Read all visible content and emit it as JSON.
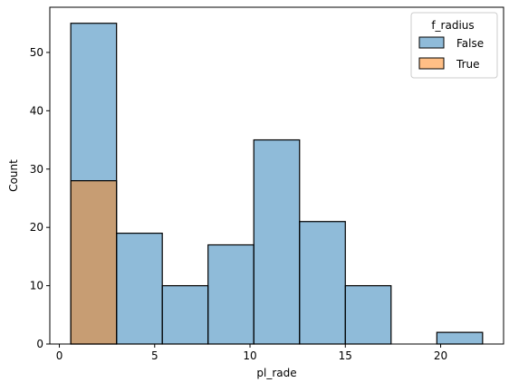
{
  "chart_data": {
    "type": "bar",
    "xlabel": "pl_rade",
    "ylabel": "Count",
    "xlim": [
      -0.5,
      23.3
    ],
    "ylim": [
      0,
      57.75
    ],
    "xticks": [
      0,
      5,
      10,
      15,
      20
    ],
    "yticks": [
      0,
      10,
      20,
      30,
      40,
      50
    ],
    "bin_edges": [
      0.6,
      3.0,
      5.4,
      7.8,
      10.2,
      12.6,
      15.0,
      17.4,
      19.8,
      22.2
    ],
    "series": [
      {
        "name": "False",
        "color": "#1f77b4",
        "values": [
          55,
          19,
          10,
          17,
          35,
          21,
          10,
          0,
          2
        ]
      },
      {
        "name": "True",
        "color": "#ff7f0e",
        "values": [
          28,
          0,
          0,
          0,
          0,
          0,
          0,
          0,
          0
        ]
      }
    ],
    "legend": {
      "title": "f_radius",
      "position": "top-right"
    }
  }
}
